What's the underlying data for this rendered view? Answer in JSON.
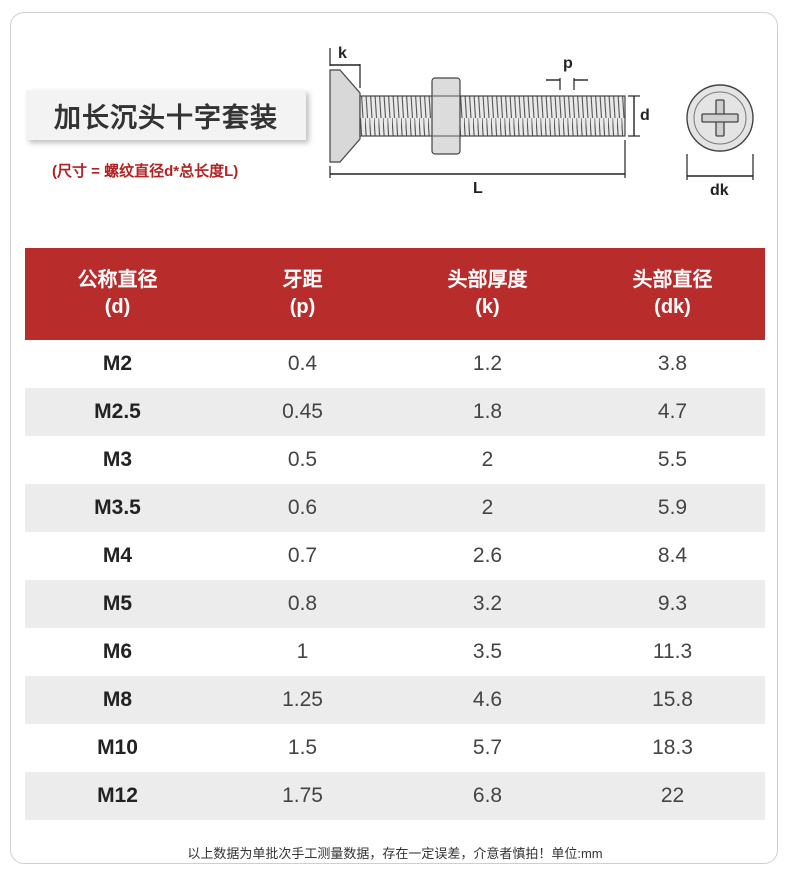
{
  "title": "加长沉头十字套装",
  "subtitle": "(尺寸 = 螺纹直径d*总长度L)",
  "diagram_labels": {
    "k": "k",
    "p": "p",
    "d": "d",
    "L": "L",
    "dk": "dk"
  },
  "table": {
    "headers": [
      {
        "name": "公称直径",
        "symbol": "(d)"
      },
      {
        "name": "牙距",
        "symbol": "(p)"
      },
      {
        "name": "头部厚度",
        "symbol": "(k)"
      },
      {
        "name": "头部直径",
        "symbol": "(dk)"
      }
    ],
    "rows": [
      [
        "M2",
        "0.4",
        "1.2",
        "3.8"
      ],
      [
        "M2.5",
        "0.45",
        "1.8",
        "4.7"
      ],
      [
        "M3",
        "0.5",
        "2",
        "5.5"
      ],
      [
        "M3.5",
        "0.6",
        "2",
        "5.9"
      ],
      [
        "M4",
        "0.7",
        "2.6",
        "8.4"
      ],
      [
        "M5",
        "0.8",
        "3.2",
        "9.3"
      ],
      [
        "M6",
        "1",
        "3.5",
        "11.3"
      ],
      [
        "M8",
        "1.25",
        "4.6",
        "15.8"
      ],
      [
        "M10",
        "1.5",
        "5.7",
        "18.3"
      ],
      [
        "M12",
        "1.75",
        "6.8",
        "22"
      ]
    ]
  },
  "footnote": "以上数据为单批次手工测量数据，存在一定误差，介意者慎拍！单位:mm",
  "colors": {
    "header_bg": "#b92c2c",
    "alt_row_bg": "#ececec",
    "subtitle": "#b22222"
  }
}
